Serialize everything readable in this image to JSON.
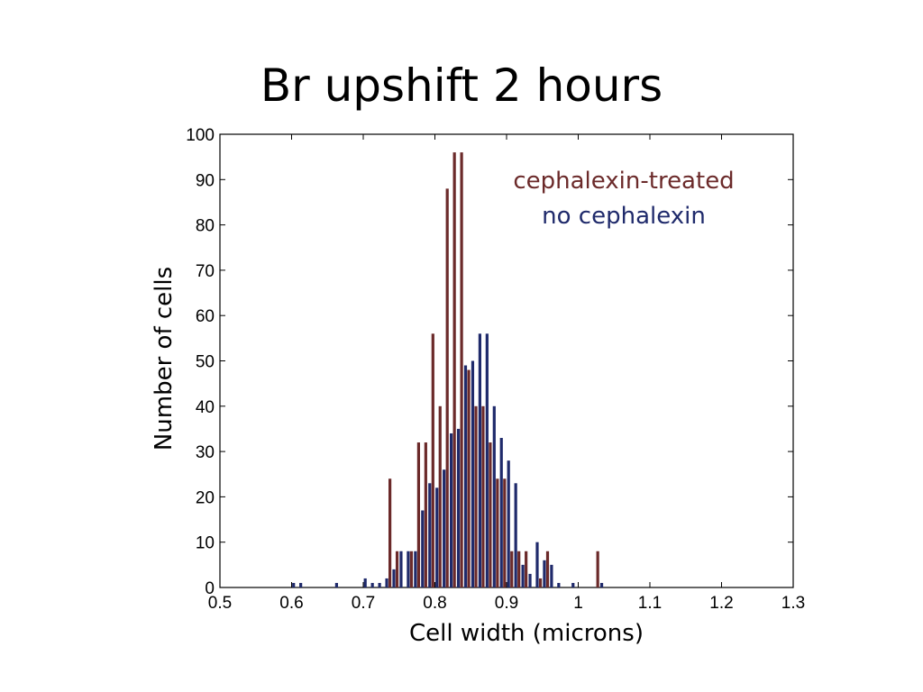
{
  "slide": {
    "title": "Br upshift 2 hours"
  },
  "chart_data": {
    "type": "bar",
    "xlabel": "Cell width (microns)",
    "ylabel": "Number of cells",
    "xlim": [
      0.5,
      1.3
    ],
    "ylim": [
      0,
      100
    ],
    "xticks": [
      "0.5",
      "0.6",
      "0.7",
      "0.8",
      "0.9",
      "1",
      "1.1",
      "1.2",
      "1.3"
    ],
    "yticks": [
      "0",
      "10",
      "20",
      "30",
      "40",
      "50",
      "60",
      "70",
      "80",
      "90",
      "100"
    ],
    "grid": false,
    "legend": {
      "placement": "top-right"
    },
    "series": [
      {
        "name": "cephalexin-treated",
        "color": "#6b2a2a",
        "x": [
          0.74,
          0.75,
          0.77,
          0.78,
          0.79,
          0.8,
          0.81,
          0.82,
          0.83,
          0.84,
          0.85,
          0.86,
          0.87,
          0.88,
          0.89,
          0.9,
          0.91,
          0.92,
          0.93,
          0.95,
          0.96,
          1.03
        ],
        "values": [
          24,
          8,
          8,
          32,
          32,
          56,
          40,
          88,
          96,
          96,
          48,
          40,
          40,
          32,
          24,
          24,
          8,
          8,
          8,
          2,
          8,
          8
        ]
      },
      {
        "name": "no cephalexin",
        "color": "#1f2a6b",
        "x": [
          0.6,
          0.61,
          0.66,
          0.7,
          0.71,
          0.72,
          0.73,
          0.74,
          0.75,
          0.76,
          0.77,
          0.78,
          0.79,
          0.8,
          0.81,
          0.82,
          0.83,
          0.84,
          0.85,
          0.86,
          0.87,
          0.88,
          0.89,
          0.9,
          0.91,
          0.92,
          0.93,
          0.94,
          0.95,
          0.96,
          0.97,
          0.99,
          1.03
        ],
        "values": [
          1,
          1,
          1,
          2,
          1,
          1,
          2,
          4,
          8,
          8,
          8,
          17,
          23,
          22,
          26,
          34,
          35,
          49,
          50,
          56,
          56,
          40,
          33,
          28,
          23,
          5,
          3,
          10,
          6,
          5,
          1,
          1,
          1
        ]
      }
    ]
  }
}
